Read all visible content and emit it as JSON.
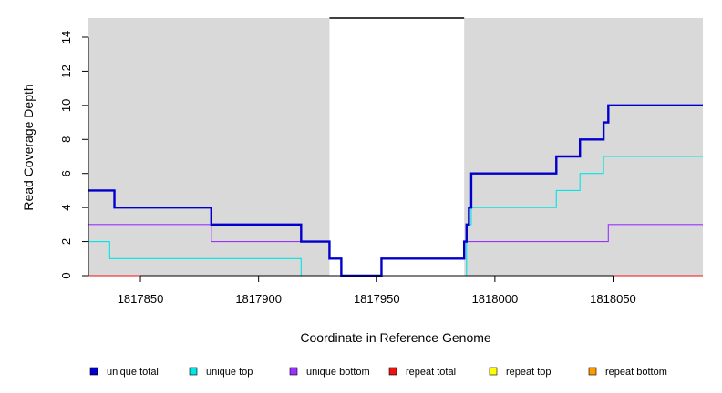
{
  "chart_data": {
    "type": "line",
    "xlabel": "Coordinate in Reference Genome",
    "ylabel": "Read Coverage Depth",
    "xlim": [
      1817828,
      1818088
    ],
    "ylim": [
      0,
      15
    ],
    "x_ticks": [
      1817850,
      1817900,
      1817950,
      1818000,
      1818050
    ],
    "x_tick_labels": [
      "1817850",
      "1817900",
      "1817950",
      "1818000",
      "1818050"
    ],
    "y_ticks": [
      0,
      2,
      4,
      6,
      8,
      10,
      12,
      14
    ],
    "y_tick_labels": [
      "0",
      "2",
      "4",
      "6",
      "8",
      "10",
      "12",
      "14"
    ],
    "grid": false,
    "background_color": "#d9d9d9",
    "unshaded_region": [
      1817930,
      1817987
    ],
    "top_bar_region": [
      1817930,
      1817987
    ],
    "legend_position": "bottom",
    "series": [
      {
        "name": "unique total",
        "color": "#0000cc",
        "line": "thick",
        "x": [
          1817828,
          1817839,
          1817839,
          1817880,
          1817880,
          1817918,
          1817918,
          1817930,
          1817930,
          1817935,
          1817935,
          1817952,
          1817952,
          1817987,
          1817987,
          1817988,
          1817988,
          1817989,
          1817989,
          1817990,
          1817990,
          1818026,
          1818026,
          1818036,
          1818036,
          1818046,
          1818046,
          1818048,
          1818048,
          1818088
        ],
        "y": [
          5,
          5,
          4,
          4,
          3,
          3,
          2,
          2,
          1,
          1,
          0,
          0,
          1,
          1,
          2,
          2,
          3,
          3,
          4,
          4,
          6,
          6,
          7,
          7,
          8,
          8,
          9,
          9,
          10,
          10
        ]
      },
      {
        "name": "unique top",
        "color": "#00e5e5",
        "line": "thin",
        "x": [
          1817828,
          1817837,
          1817837,
          1817918,
          1817918,
          1817988,
          1817988,
          1817990,
          1817990,
          1818026,
          1818026,
          1818036,
          1818036,
          1818046,
          1818046,
          1818088
        ],
        "y": [
          2,
          2,
          1,
          1,
          0,
          0,
          3,
          3,
          4,
          4,
          5,
          5,
          6,
          6,
          7,
          7
        ]
      },
      {
        "name": "unique bottom",
        "color": "#9b30ff",
        "line": "thin",
        "x": [
          1817828,
          1817880,
          1817880,
          1817930,
          1817930,
          1817935,
          1817935,
          1817952,
          1817952,
          1817987,
          1817987,
          1818048,
          1818048,
          1818088
        ],
        "y": [
          3,
          3,
          2,
          2,
          1,
          1,
          0,
          0,
          1,
          1,
          2,
          2,
          3,
          3
        ]
      },
      {
        "name": "repeat total",
        "color": "#ee1111",
        "line": "thin",
        "x": [
          1817828,
          1818088
        ],
        "y": [
          0,
          0
        ]
      },
      {
        "name": "repeat top",
        "color": "#ffff00",
        "line": "thin",
        "x": [
          1817828,
          1818088
        ],
        "y": [
          0,
          0
        ]
      },
      {
        "name": "repeat bottom",
        "color": "#ff9900",
        "line": "thin",
        "x": [
          1817828,
          1818088
        ],
        "y": [
          0,
          0
        ]
      }
    ]
  }
}
